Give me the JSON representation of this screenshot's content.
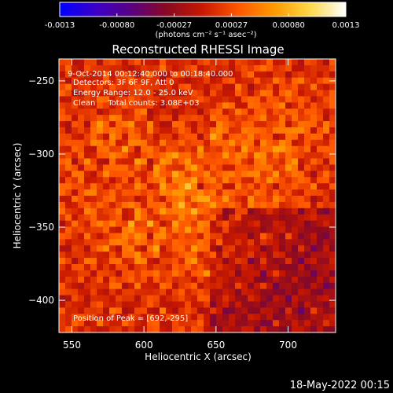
{
  "colorbar": {
    "ticks": [
      "-0.0013",
      "-0.00080",
      "-0.00027",
      "0.00027",
      "0.00080",
      "0.0013"
    ],
    "unit_label": "(photons cm⁻² s⁻¹ asec⁻²)",
    "stops": [
      "#0000ff",
      "#3a00c8",
      "#5a0082",
      "#8a0a22",
      "#c81800",
      "#ff5800",
      "#ff9a00",
      "#ffd84a",
      "#ffffff"
    ]
  },
  "chart_data": {
    "type": "heatmap",
    "title": "Reconstructed RHESSI Image",
    "xlabel": "Heliocentric X (arcsec)",
    "ylabel": "Heliocentric Y (arcsec)",
    "xlim": [
      541,
      733
    ],
    "ylim": [
      -422,
      -235
    ],
    "x_ticks": [
      550,
      600,
      650,
      700
    ],
    "y_ticks": [
      -250,
      -300,
      -350,
      -400
    ],
    "value_range": [
      -0.0013,
      0.0013
    ],
    "peak_position": [
      692,
      -295
    ],
    "annotations": [
      "9-Oct-2014 00:12:40.000 to 00:18:40.000",
      "Detectors: 3F 6F 9F, Att 0",
      "Energy Range: 12.0 - 25.0 keV",
      "Clean     Total counts: 3.08E+03",
      "Position of Peak = [692,-295]"
    ]
  },
  "footer": {
    "timestamp": "18-May-2022 00:15"
  }
}
